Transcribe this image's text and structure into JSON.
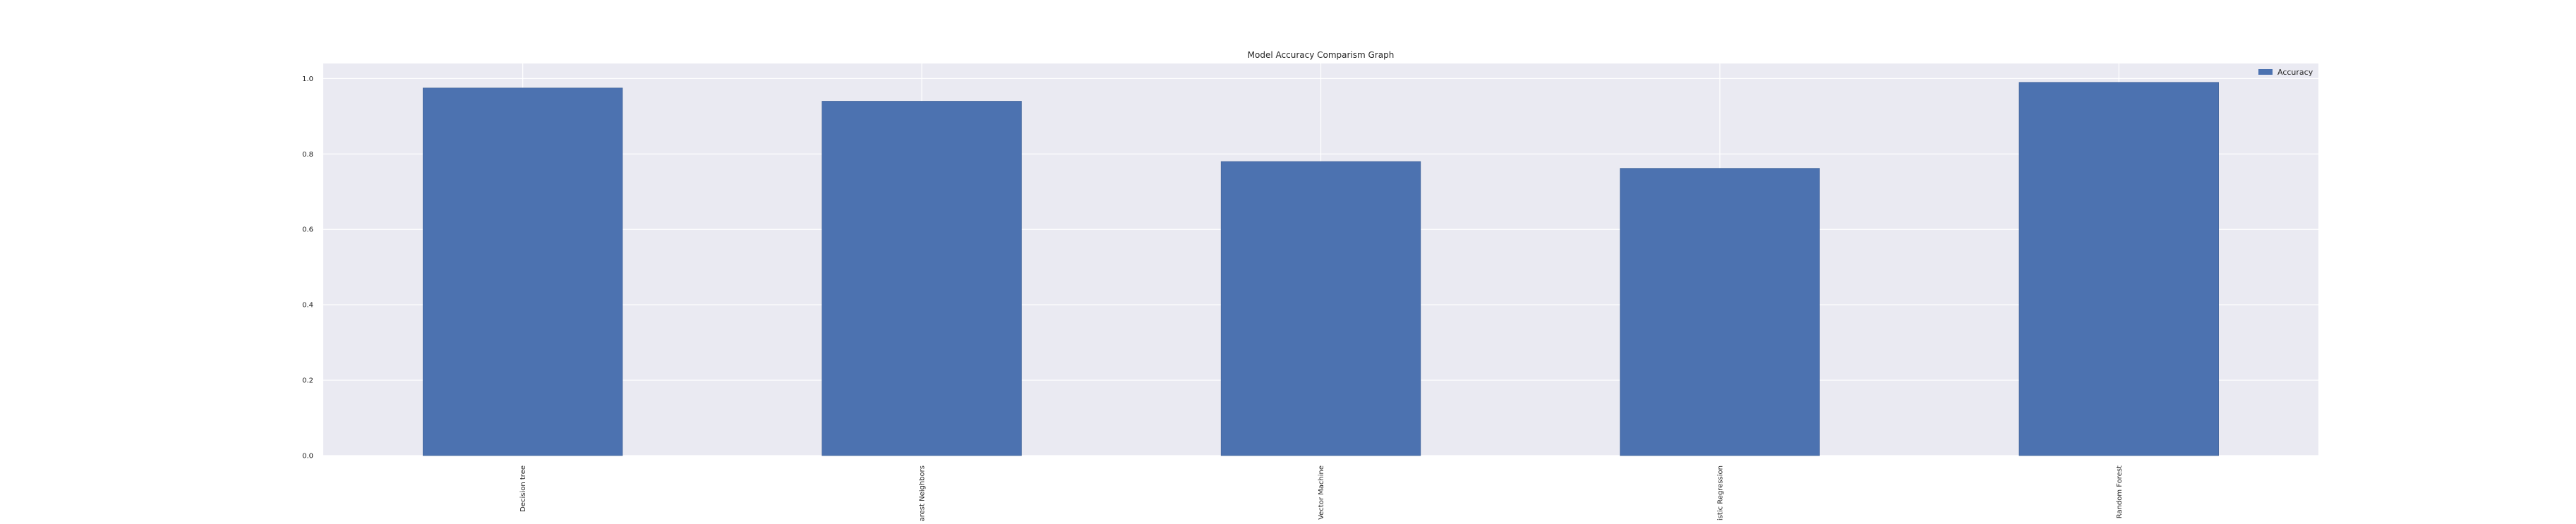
{
  "chart_data": {
    "type": "bar",
    "title": "Model Accuracy Comparism Graph",
    "xlabel": "",
    "ylabel": "",
    "categories": [
      "Decision tree",
      "K-Nearest Neighbors",
      "Support Vector Machine",
      "Logistic Regression",
      "Random Forest"
    ],
    "series": [
      {
        "name": "Accuracy",
        "values": [
          0.975,
          0.94,
          0.78,
          0.762,
          0.99
        ]
      }
    ],
    "ylim": [
      0.0,
      1.04
    ],
    "yticks": [
      "0.0",
      "0.2",
      "0.4",
      "0.6",
      "0.8",
      "1.0"
    ],
    "grid": true,
    "legend_position": "top-right",
    "colors": {
      "bar": "#4c72b0",
      "plot_background": "#eaeaf2",
      "grid": "#ffffff"
    }
  }
}
